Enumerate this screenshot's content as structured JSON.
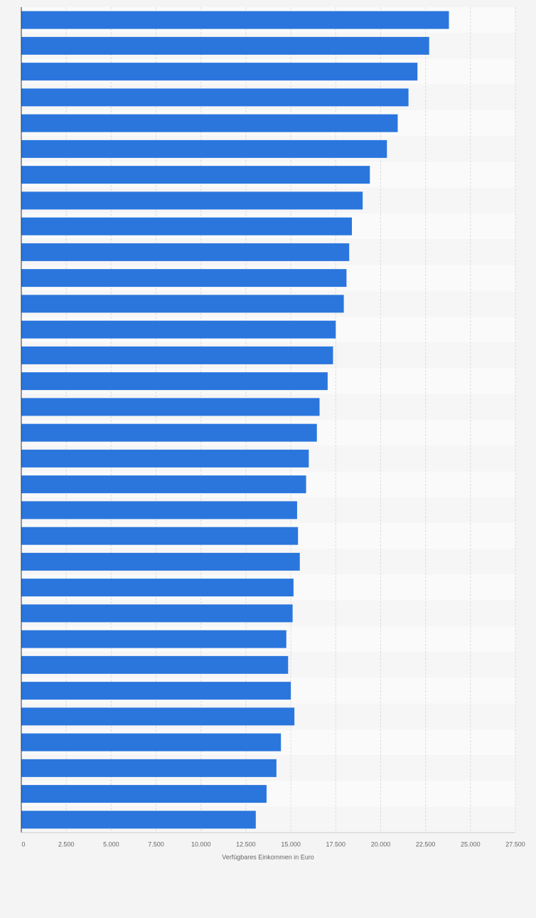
{
  "chart_data": {
    "type": "bar",
    "orientation": "horizontal",
    "x_label": "Verfügbares Einkommen in Euro",
    "categories": [
      null,
      null,
      null,
      null,
      null,
      null,
      null,
      null,
      null,
      null,
      null,
      null,
      null,
      null,
      null,
      null,
      null,
      null,
      null,
      null,
      null,
      null,
      null,
      null,
      null,
      null,
      null,
      null,
      null,
      null,
      null,
      null
    ],
    "values": [
      23800,
      22700,
      22050,
      21550,
      20950,
      20350,
      19400,
      19000,
      18400,
      18250,
      18100,
      17950,
      17500,
      17350,
      17050,
      16600,
      16450,
      16000,
      15850,
      15350,
      15400,
      15500,
      15150,
      15100,
      14750,
      14850,
      15000,
      15200,
      14450,
      14200,
      13650,
      13050
    ],
    "color": "#2a76dd",
    "xlim": [
      0,
      27500
    ],
    "xticks": [
      0,
      {
        "value": 2500,
        "label": "2.500"
      },
      {
        "value": 5000,
        "label": "5.000"
      },
      {
        "value": 7500,
        "label": "7.500"
      },
      {
        "value": 10000,
        "label": "10.000"
      },
      {
        "value": 12500,
        "label": "12.500"
      },
      {
        "value": 15000,
        "label": "15.000"
      },
      {
        "value": 17500,
        "label": "17.500"
      },
      {
        "value": 20000,
        "label": "20.000"
      },
      {
        "value": 22500,
        "label": "22.500"
      },
      {
        "value": 25000,
        "label": "25.000"
      },
      {
        "value": 27500,
        "label": "27.500"
      }
    ],
    "grid": true
  }
}
